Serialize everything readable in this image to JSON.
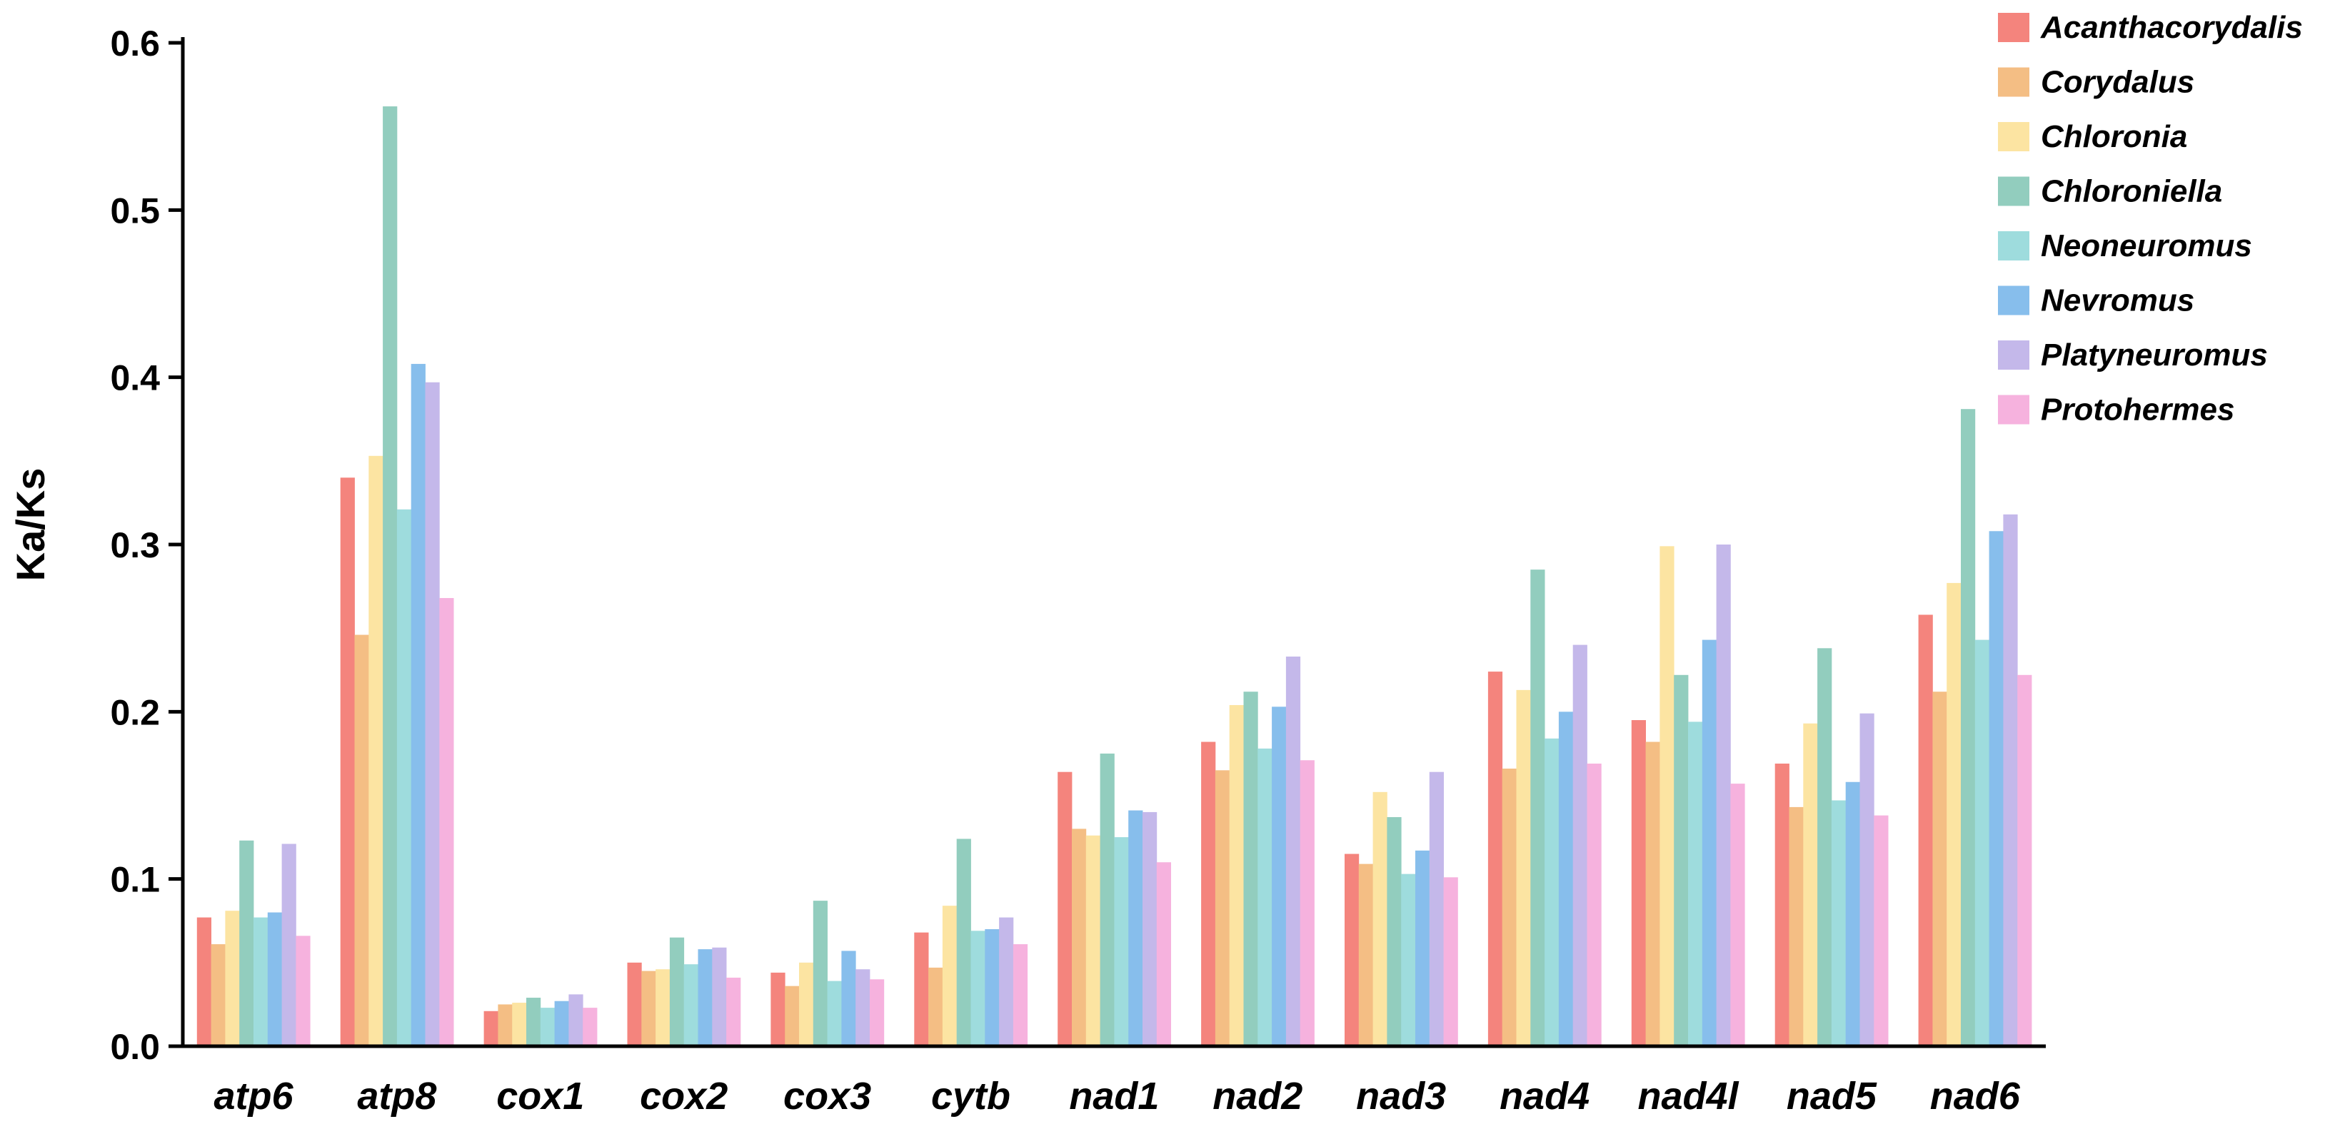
{
  "chart_data": {
    "type": "bar",
    "title": "",
    "xlabel": "",
    "ylabel": "Ka/Ks",
    "ylim": [
      0,
      0.6
    ],
    "yticks": [
      "0.0",
      "0.1",
      "0.2",
      "0.3",
      "0.4",
      "0.5",
      "0.6"
    ],
    "ytick_values": [
      0,
      0.1,
      0.2,
      0.3,
      0.4,
      0.5,
      0.6
    ],
    "grid": false,
    "legend_position": "top-right",
    "categories": [
      "atp6",
      "atp8",
      "cox1",
      "cox2",
      "cox3",
      "cytb",
      "nad1",
      "nad2",
      "nad3",
      "nad4",
      "nad4l",
      "nad5",
      "nad6"
    ],
    "series": [
      {
        "name": "Acanthacorydalis",
        "color": "#F4847D",
        "values": [
          0.077,
          0.34,
          0.021,
          0.05,
          0.044,
          0.068,
          0.164,
          0.182,
          0.115,
          0.224,
          0.195,
          0.169,
          0.258
        ]
      },
      {
        "name": "Corydalus",
        "color": "#F4BE84",
        "values": [
          0.061,
          0.246,
          0.025,
          0.045,
          0.036,
          0.047,
          0.13,
          0.165,
          0.109,
          0.166,
          0.182,
          0.143,
          0.212
        ]
      },
      {
        "name": "Chloronia",
        "color": "#FCE4A2",
        "values": [
          0.081,
          0.353,
          0.026,
          0.046,
          0.05,
          0.084,
          0.126,
          0.204,
          0.152,
          0.213,
          0.299,
          0.193,
          0.277
        ]
      },
      {
        "name": "Chloroniella",
        "color": "#92CDBE",
        "values": [
          0.123,
          0.562,
          0.029,
          0.065,
          0.087,
          0.124,
          0.175,
          0.212,
          0.137,
          0.285,
          0.222,
          0.238,
          0.381
        ]
      },
      {
        "name": "Neoneuromus",
        "color": "#9EDCDD",
        "values": [
          0.077,
          0.321,
          0.023,
          0.049,
          0.039,
          0.069,
          0.125,
          0.178,
          0.103,
          0.184,
          0.194,
          0.147,
          0.243
        ]
      },
      {
        "name": "Nevromus",
        "color": "#87BEEC",
        "values": [
          0.08,
          0.408,
          0.027,
          0.058,
          0.057,
          0.07,
          0.141,
          0.203,
          0.117,
          0.2,
          0.243,
          0.158,
          0.308
        ]
      },
      {
        "name": "Platyneuromus",
        "color": "#C4B8EA",
        "values": [
          0.121,
          0.397,
          0.031,
          0.059,
          0.046,
          0.077,
          0.14,
          0.233,
          0.164,
          0.24,
          0.3,
          0.199,
          0.318
        ]
      },
      {
        "name": "Protohermes",
        "color": "#F6B2DE",
        "values": [
          0.066,
          0.268,
          0.023,
          0.041,
          0.04,
          0.061,
          0.11,
          0.171,
          0.101,
          0.169,
          0.157,
          0.138,
          0.222
        ]
      }
    ]
  }
}
